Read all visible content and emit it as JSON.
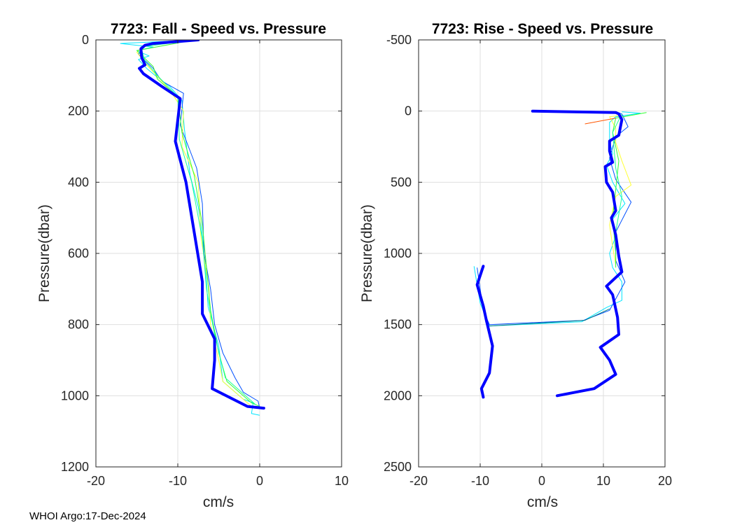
{
  "footer_text": "WHOI Argo:17-Dec-2024",
  "colors": {
    "thick": "#0000ff",
    "series": [
      "#00e5ff",
      "#0050ff",
      "#ffff33",
      "#33ff33",
      "#1aff99",
      "#ff5500",
      "#007a80"
    ]
  },
  "chart_data": [
    {
      "type": "line",
      "title": "7723: Fall - Speed vs. Pressure",
      "xlabel": "cm/s",
      "ylabel": "Pressure(dbar)",
      "xlim": [
        -20,
        10
      ],
      "ylim": [
        0,
        1200
      ],
      "y_reversed": true,
      "xticks": [
        -20,
        -10,
        0,
        10
      ],
      "yticks": [
        0,
        200,
        400,
        600,
        800,
        1000,
        1200
      ],
      "grid": true,
      "main_series": {
        "name": "mean",
        "points": [
          [
            -7.5,
            0
          ],
          [
            -13,
            10
          ],
          [
            -14,
            15
          ],
          [
            -14.5,
            25
          ],
          [
            -14.4,
            50
          ],
          [
            -14,
            70
          ],
          [
            -14.7,
            80
          ],
          [
            -14.2,
            95
          ],
          [
            -12,
            130
          ],
          [
            -9.7,
            165
          ],
          [
            -10.3,
            285
          ],
          [
            -9,
            400
          ],
          [
            -7,
            680
          ],
          [
            -7,
            770
          ],
          [
            -5.5,
            840
          ],
          [
            -5.5,
            900
          ],
          [
            -5.8,
            980
          ],
          [
            -1.5,
            1030
          ],
          [
            0.5,
            1035
          ]
        ]
      },
      "series": [
        {
          "name": "s1",
          "color_index": 0,
          "points": [
            [
              -8,
              0
            ],
            [
              -17,
              10
            ],
            [
              -13,
              20
            ],
            [
              -14,
              25
            ],
            [
              -15,
              30
            ],
            [
              -13.5,
              45
            ],
            [
              -14.8,
              55
            ],
            [
              -13.8,
              80
            ],
            [
              -12.5,
              105
            ],
            [
              -11,
              130
            ],
            [
              -9.5,
              170
            ],
            [
              -9.2,
              250
            ],
            [
              -8.5,
              380
            ],
            [
              -7.5,
              470
            ],
            [
              -7,
              550
            ],
            [
              -6.5,
              680
            ],
            [
              -6.3,
              750
            ],
            [
              -5,
              860
            ],
            [
              -4.5,
              960
            ],
            [
              -2,
              1010
            ],
            [
              -0.8,
              1020
            ],
            [
              -1,
              1050
            ],
            [
              0,
              1055
            ]
          ]
        },
        {
          "name": "s2",
          "color_index": 1,
          "points": [
            [
              -7.5,
              0
            ],
            [
              -14,
              12
            ],
            [
              -14.8,
              40
            ],
            [
              -13,
              80
            ],
            [
              -12,
              115
            ],
            [
              -9.3,
              150
            ],
            [
              -9.7,
              240
            ],
            [
              -7.7,
              360
            ],
            [
              -7,
              460
            ],
            [
              -6.8,
              600
            ],
            [
              -6,
              700
            ],
            [
              -5.5,
              800
            ],
            [
              -4.5,
              880
            ],
            [
              -3,
              950
            ],
            [
              -2,
              990
            ],
            [
              -0.2,
              1015
            ],
            [
              0,
              1035
            ]
          ]
        },
        {
          "name": "s3",
          "color_index": 2,
          "points": [
            [
              -8.3,
              0
            ],
            [
              -14,
              15
            ],
            [
              -15,
              35
            ],
            [
              -14,
              65
            ],
            [
              -13,
              90
            ],
            [
              -11,
              140
            ],
            [
              -9.3,
              200
            ],
            [
              -9.5,
              300
            ],
            [
              -7.5,
              400
            ],
            [
              -7.2,
              550
            ],
            [
              -6.2,
              700
            ],
            [
              -6,
              800
            ],
            [
              -5,
              900
            ],
            [
              -4.5,
              960
            ],
            [
              -1,
              1030
            ]
          ]
        },
        {
          "name": "s4",
          "color_index": 3,
          "points": [
            [
              -8,
              0
            ],
            [
              -15,
              30
            ],
            [
              -13,
              75
            ],
            [
              -12.5,
              110
            ],
            [
              -10,
              160
            ],
            [
              -9.5,
              260
            ],
            [
              -8,
              380
            ],
            [
              -7,
              520
            ],
            [
              -6.5,
              640
            ],
            [
              -6,
              760
            ],
            [
              -5,
              880
            ],
            [
              -4,
              960
            ],
            [
              -1,
              1020
            ],
            [
              0,
              1030
            ]
          ]
        },
        {
          "name": "s5",
          "color_index": 4,
          "points": [
            [
              -8,
              0
            ],
            [
              -14.5,
              20
            ],
            [
              -14,
              60
            ],
            [
              -12.5,
              100
            ],
            [
              -10,
              160
            ],
            [
              -9.8,
              280
            ],
            [
              -8.3,
              400
            ],
            [
              -7,
              560
            ],
            [
              -6.5,
              700
            ],
            [
              -5.5,
              830
            ],
            [
              -4.2,
              950
            ],
            [
              -0.5,
              1025
            ]
          ]
        }
      ]
    },
    {
      "type": "line",
      "title": "7723: Rise - Speed vs. Pressure",
      "xlabel": "cm/s",
      "ylabel": "Pressure(dbar)",
      "xlim": [
        -20,
        20
      ],
      "ylim": [
        -500,
        2500
      ],
      "y_reversed": true,
      "xticks": [
        -20,
        -10,
        0,
        10,
        20
      ],
      "yticks": [
        -500,
        0,
        500,
        1000,
        1500,
        2000,
        2500
      ],
      "grid": true,
      "main_series": {
        "name": "mean",
        "points": [
          [
            -9.5,
            2010
          ],
          [
            -9.8,
            1950
          ],
          [
            -8.5,
            1840
          ],
          [
            -8,
            1650
          ],
          [
            -9,
            1470
          ],
          [
            -9.5,
            1370
          ],
          [
            -10.5,
            1220
          ],
          [
            -9.5,
            1090
          ],
          [
            2.5,
            2000
          ],
          [
            8.5,
            1950
          ],
          [
            12,
            1850
          ],
          [
            11,
            1750
          ],
          [
            9.5,
            1660
          ],
          [
            12.5,
            1570
          ],
          [
            12.3,
            1450
          ],
          [
            11.5,
            1290
          ],
          [
            10.5,
            1230
          ],
          [
            13,
            1130
          ],
          [
            12.5,
            1020
          ],
          [
            12,
            870
          ],
          [
            11.3,
            750
          ],
          [
            12,
            700
          ],
          [
            11.5,
            570
          ],
          [
            10.5,
            500
          ],
          [
            10.3,
            390
          ],
          [
            11.5,
            360
          ],
          [
            11,
            280
          ],
          [
            11,
            210
          ],
          [
            12.5,
            170
          ],
          [
            13,
            60
          ],
          [
            12.5,
            20
          ],
          [
            12,
            10
          ],
          [
            5,
            5
          ],
          [
            -1.5,
            0
          ]
        ]
      },
      "main_segments": [
        [
          0,
          8
        ],
        [
          8,
          34
        ]
      ],
      "series": [
        {
          "name": "s1",
          "color_index": 0,
          "points": [
            [
              -11,
              1090
            ],
            [
              -10,
              1350
            ],
            [
              -8.5,
              1510
            ],
            [
              6.5,
              1480
            ],
            [
              10.5,
              1380
            ],
            [
              13,
              1330
            ],
            [
              13,
              1200
            ],
            [
              11.5,
              1100
            ],
            [
              11,
              1000
            ],
            [
              12,
              880
            ],
            [
              11.5,
              760
            ],
            [
              13.5,
              650
            ],
            [
              11.5,
              500
            ],
            [
              10.5,
              380
            ],
            [
              11.5,
              300
            ],
            [
              11,
              210
            ],
            [
              11,
              80
            ],
            [
              12,
              40
            ],
            [
              16,
              15
            ],
            [
              13,
              5
            ]
          ]
        },
        {
          "name": "s2",
          "color_index": 1,
          "points": [
            [
              -10.5,
              1100
            ],
            [
              -9.5,
              1400
            ],
            [
              -8.5,
              1500
            ],
            [
              6.8,
              1470
            ],
            [
              11,
              1400
            ],
            [
              13.5,
              1200
            ],
            [
              12,
              1050
            ],
            [
              12,
              850
            ],
            [
              14.5,
              640
            ],
            [
              12,
              480
            ],
            [
              11,
              330
            ],
            [
              12,
              180
            ],
            [
              14,
              110
            ],
            [
              13,
              20
            ],
            [
              12,
              5
            ]
          ]
        },
        {
          "name": "s3",
          "color_index": 2,
          "points": [
            [
              13,
              30
            ],
            [
              11,
              40
            ],
            [
              12,
              120
            ],
            [
              12,
              220
            ],
            [
              13,
              350
            ],
            [
              14.5,
              520
            ],
            [
              12,
              600
            ],
            [
              11,
              800
            ],
            [
              11.5,
              950
            ],
            [
              12,
              1080
            ]
          ]
        },
        {
          "name": "s4",
          "color_index": 3,
          "points": [
            [
              17,
              10
            ],
            [
              12,
              50
            ],
            [
              11.5,
              150
            ],
            [
              12.5,
              350
            ],
            [
              12,
              550
            ],
            [
              11.5,
              750
            ],
            [
              12,
              1000
            ],
            [
              12,
              1100
            ]
          ]
        },
        {
          "name": "s5",
          "color_index": 4,
          "points": [
            [
              13,
              20
            ],
            [
              11.5,
              150
            ],
            [
              12,
              400
            ],
            [
              13,
              600
            ],
            [
              12,
              850
            ],
            [
              12.5,
              1050
            ]
          ]
        },
        {
          "name": "s6",
          "color_index": 5,
          "points": [
            [
              7,
              90
            ],
            [
              12,
              50
            ]
          ]
        },
        {
          "name": "s7",
          "color_index": 6,
          "points": [
            [
              -8.5,
              1510
            ],
            [
              7,
              1470
            ],
            [
              11,
              1390
            ]
          ]
        }
      ]
    }
  ]
}
